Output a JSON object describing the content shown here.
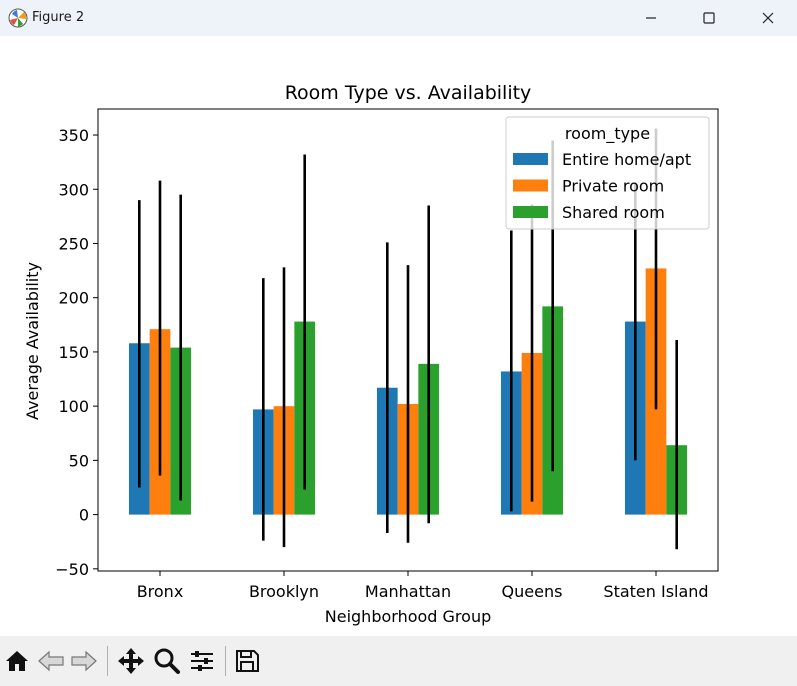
{
  "window": {
    "title": "Figure 2"
  },
  "toolbar": {
    "buttons": [
      "home-icon",
      "back-icon",
      "forward-icon",
      "pan-icon",
      "zoom-icon",
      "configure-subplots-icon",
      "save-icon"
    ]
  },
  "chart_data": {
    "type": "bar",
    "title": "Room Type vs. Availability",
    "xlabel": "Neighborhood Group",
    "ylabel": "Average Availability",
    "categories": [
      "Bronx",
      "Brooklyn",
      "Manhattan",
      "Queens",
      "Staten Island"
    ],
    "series": [
      {
        "name": "Entire home/apt",
        "color": "#1f77b4",
        "values": [
          158,
          97,
          117,
          132,
          178
        ],
        "error_low": [
          25,
          -24,
          -17,
          3,
          50
        ],
        "error_high": [
          290,
          218,
          251,
          262,
          305
        ]
      },
      {
        "name": "Private room",
        "color": "#ff7f0e",
        "values": [
          171,
          100,
          102,
          149,
          227
        ],
        "error_low": [
          36,
          -30,
          -26,
          12,
          97
        ],
        "error_high": [
          308,
          228,
          230,
          286,
          356
        ]
      },
      {
        "name": "Shared room",
        "color": "#2ca02c",
        "values": [
          154,
          178,
          139,
          192,
          64
        ],
        "error_low": [
          13,
          23,
          -8,
          40,
          -32
        ],
        "error_high": [
          295,
          332,
          285,
          345,
          161
        ]
      }
    ],
    "ylim": [
      -52,
      374
    ],
    "yticks": [
      -50,
      0,
      50,
      100,
      150,
      200,
      250,
      300,
      350
    ],
    "legend": {
      "title": "room_type",
      "placement": "upper right"
    },
    "grid": false
  }
}
